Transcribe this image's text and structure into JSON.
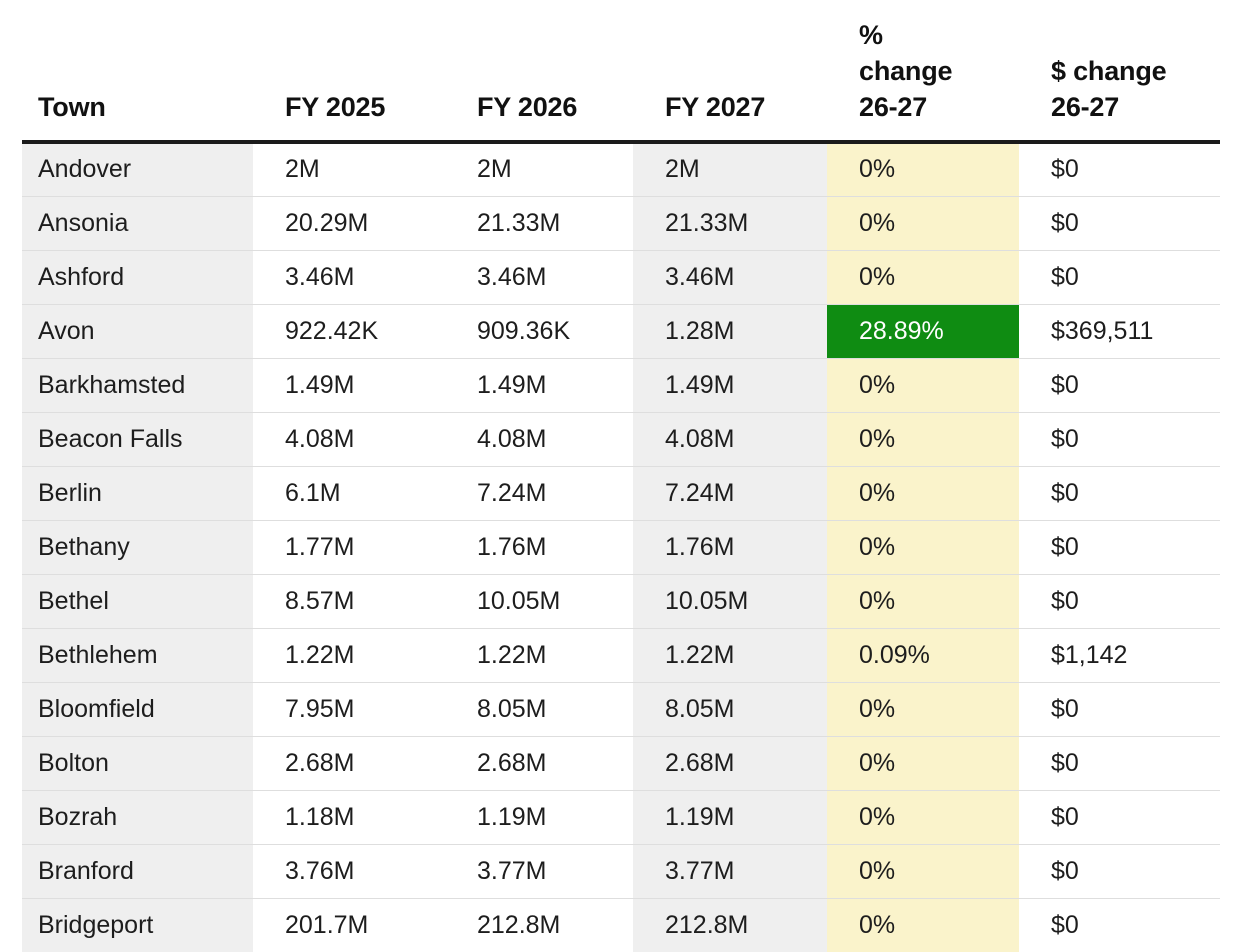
{
  "chart_data": {
    "type": "table",
    "columns": [
      {
        "key": "town",
        "label_lines": [
          "Town"
        ]
      },
      {
        "key": "fy2025",
        "label_lines": [
          "FY 2025"
        ]
      },
      {
        "key": "fy2026",
        "label_lines": [
          "FY 2026"
        ]
      },
      {
        "key": "fy2027",
        "label_lines": [
          "FY 2027"
        ]
      },
      {
        "key": "pct",
        "label_lines": [
          "%",
          "change",
          "26-27"
        ]
      },
      {
        "key": "usd",
        "label_lines": [
          "$ change",
          "26-27"
        ]
      }
    ],
    "rows": [
      {
        "town": "Andover",
        "fy2025": "2M",
        "fy2026": "2M",
        "fy2027": "2M",
        "pct": "0%",
        "usd": "$0"
      },
      {
        "town": "Ansonia",
        "fy2025": "20.29M",
        "fy2026": "21.33M",
        "fy2027": "21.33M",
        "pct": "0%",
        "usd": "$0"
      },
      {
        "town": "Ashford",
        "fy2025": "3.46M",
        "fy2026": "3.46M",
        "fy2027": "3.46M",
        "pct": "0%",
        "usd": "$0"
      },
      {
        "town": "Avon",
        "fy2025": "922.42K",
        "fy2026": "909.36K",
        "fy2027": "1.28M",
        "pct": "28.89%",
        "usd": "$369,511",
        "pct_highlight": "green"
      },
      {
        "town": "Barkhamsted",
        "fy2025": "1.49M",
        "fy2026": "1.49M",
        "fy2027": "1.49M",
        "pct": "0%",
        "usd": "$0"
      },
      {
        "town": "Beacon Falls",
        "fy2025": "4.08M",
        "fy2026": "4.08M",
        "fy2027": "4.08M",
        "pct": "0%",
        "usd": "$0"
      },
      {
        "town": "Berlin",
        "fy2025": "6.1M",
        "fy2026": "7.24M",
        "fy2027": "7.24M",
        "pct": "0%",
        "usd": "$0"
      },
      {
        "town": "Bethany",
        "fy2025": "1.77M",
        "fy2026": "1.76M",
        "fy2027": "1.76M",
        "pct": "0%",
        "usd": "$0"
      },
      {
        "town": "Bethel",
        "fy2025": "8.57M",
        "fy2026": "10.05M",
        "fy2027": "10.05M",
        "pct": "0%",
        "usd": "$0"
      },
      {
        "town": "Bethlehem",
        "fy2025": "1.22M",
        "fy2026": "1.22M",
        "fy2027": "1.22M",
        "pct": "0.09%",
        "usd": "$1,142"
      },
      {
        "town": "Bloomfield",
        "fy2025": "7.95M",
        "fy2026": "8.05M",
        "fy2027": "8.05M",
        "pct": "0%",
        "usd": "$0"
      },
      {
        "town": "Bolton",
        "fy2025": "2.68M",
        "fy2026": "2.68M",
        "fy2027": "2.68M",
        "pct": "0%",
        "usd": "$0"
      },
      {
        "town": "Bozrah",
        "fy2025": "1.18M",
        "fy2026": "1.19M",
        "fy2027": "1.19M",
        "pct": "0%",
        "usd": "$0"
      },
      {
        "town": "Branford",
        "fy2025": "3.76M",
        "fy2026": "3.77M",
        "fy2027": "3.77M",
        "pct": "0%",
        "usd": "$0"
      },
      {
        "town": "Bridgeport",
        "fy2025": "201.7M",
        "fy2026": "212.8M",
        "fy2027": "212.8M",
        "pct": "0%",
        "usd": "$0"
      }
    ]
  },
  "colors": {
    "highlight_green": "#0f8c12",
    "highlight_text": "#ffffff",
    "pct_col_bg": "#faf3cb",
    "shaded_col_bg": "#efefef",
    "header_rule": "#1b1b1b",
    "row_divider": "#dedede",
    "text": "#1d1d1d"
  }
}
